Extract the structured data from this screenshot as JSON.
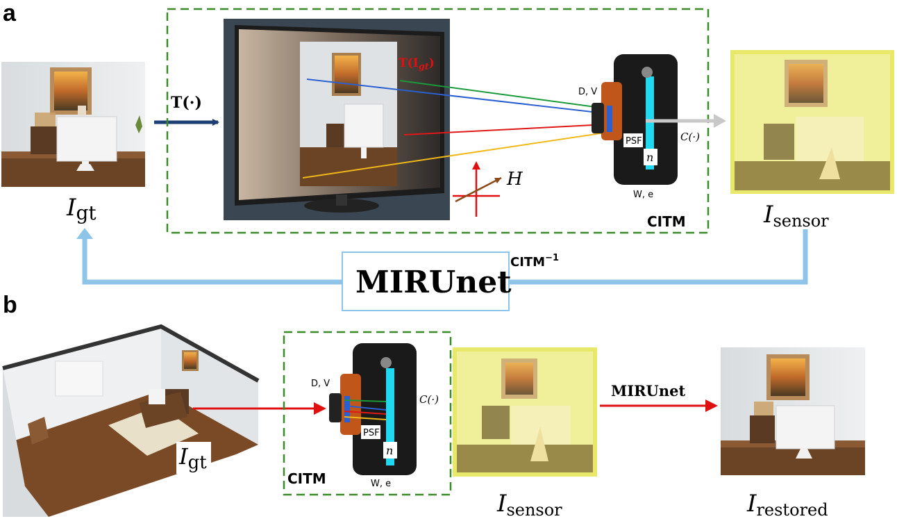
{
  "panel_a": {
    "letter": "a",
    "I_gt": {
      "main": "I",
      "sub": "gt"
    },
    "transform_label": "T(·)",
    "monitor_label": "T(I",
    "monitor_label_sub": "gt",
    "monitor_label_close": ")",
    "H_label": "H",
    "camera_DV": "D, V",
    "camera_PSF": "PSF",
    "camera_n": "n",
    "camera_We": "W, e",
    "C_label": "C(·)",
    "citm_label": "CITM",
    "I_sensor": {
      "main": "I",
      "sub": "sensor"
    },
    "inverse_label": "CITM",
    "inverse_sup": "−1",
    "mirunet_box": "MIRUnet"
  },
  "panel_b": {
    "letter": "b",
    "I_gt": {
      "main": "I",
      "sub": "gt"
    },
    "camera_DV": "D, V",
    "C_label": "C(·)",
    "camera_PSF": "PSF",
    "camera_n": "n",
    "camera_We": "W, e",
    "citm_label": "CITM",
    "I_sensor": {
      "main": "I",
      "sub": "sensor"
    },
    "mirunet_arrow": "MIRUnet",
    "I_restored": {
      "main": "I",
      "sub": "restored"
    }
  },
  "colors": {
    "dashed_box": "#3a8a2a",
    "dark_arrow": "#1d3f73",
    "light_blue": "#8ec4e8",
    "red": "#e01010",
    "ray_green": "#1a9a3a",
    "ray_blue": "#2a60d0",
    "ray_red": "#e01818",
    "ray_yellow": "#f0b818",
    "sensor_cyan": "#20d8f0",
    "sensor_yellow": "#f0ef9a"
  }
}
